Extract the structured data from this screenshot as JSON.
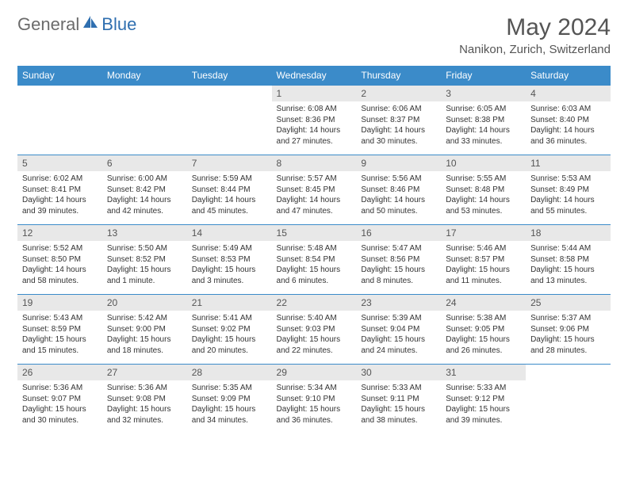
{
  "logo": {
    "part1": "General",
    "part2": "Blue"
  },
  "title": "May 2024",
  "location": "Nanikon, Zurich, Switzerland",
  "colors": {
    "header_bg": "#3b8bc9",
    "header_text": "#ffffff",
    "daynum_bg": "#e8e8e8",
    "border": "#3b8bc9",
    "logo_gray": "#6b6b6b",
    "logo_blue": "#2f6fb0",
    "text": "#333333",
    "title_color": "#555555"
  },
  "fonts": {
    "title_size": 30,
    "location_size": 15,
    "header_size": 12,
    "daynum_size": 12,
    "body_size": 10
  },
  "day_headers": [
    "Sunday",
    "Monday",
    "Tuesday",
    "Wednesday",
    "Thursday",
    "Friday",
    "Saturday"
  ],
  "weeks": [
    [
      {
        "n": "",
        "sr": "",
        "ss": "",
        "dl": ""
      },
      {
        "n": "",
        "sr": "",
        "ss": "",
        "dl": ""
      },
      {
        "n": "",
        "sr": "",
        "ss": "",
        "dl": ""
      },
      {
        "n": "1",
        "sr": "Sunrise: 6:08 AM",
        "ss": "Sunset: 8:36 PM",
        "dl": "Daylight: 14 hours and 27 minutes."
      },
      {
        "n": "2",
        "sr": "Sunrise: 6:06 AM",
        "ss": "Sunset: 8:37 PM",
        "dl": "Daylight: 14 hours and 30 minutes."
      },
      {
        "n": "3",
        "sr": "Sunrise: 6:05 AM",
        "ss": "Sunset: 8:38 PM",
        "dl": "Daylight: 14 hours and 33 minutes."
      },
      {
        "n": "4",
        "sr": "Sunrise: 6:03 AM",
        "ss": "Sunset: 8:40 PM",
        "dl": "Daylight: 14 hours and 36 minutes."
      }
    ],
    [
      {
        "n": "5",
        "sr": "Sunrise: 6:02 AM",
        "ss": "Sunset: 8:41 PM",
        "dl": "Daylight: 14 hours and 39 minutes."
      },
      {
        "n": "6",
        "sr": "Sunrise: 6:00 AM",
        "ss": "Sunset: 8:42 PM",
        "dl": "Daylight: 14 hours and 42 minutes."
      },
      {
        "n": "7",
        "sr": "Sunrise: 5:59 AM",
        "ss": "Sunset: 8:44 PM",
        "dl": "Daylight: 14 hours and 45 minutes."
      },
      {
        "n": "8",
        "sr": "Sunrise: 5:57 AM",
        "ss": "Sunset: 8:45 PM",
        "dl": "Daylight: 14 hours and 47 minutes."
      },
      {
        "n": "9",
        "sr": "Sunrise: 5:56 AM",
        "ss": "Sunset: 8:46 PM",
        "dl": "Daylight: 14 hours and 50 minutes."
      },
      {
        "n": "10",
        "sr": "Sunrise: 5:55 AM",
        "ss": "Sunset: 8:48 PM",
        "dl": "Daylight: 14 hours and 53 minutes."
      },
      {
        "n": "11",
        "sr": "Sunrise: 5:53 AM",
        "ss": "Sunset: 8:49 PM",
        "dl": "Daylight: 14 hours and 55 minutes."
      }
    ],
    [
      {
        "n": "12",
        "sr": "Sunrise: 5:52 AM",
        "ss": "Sunset: 8:50 PM",
        "dl": "Daylight: 14 hours and 58 minutes."
      },
      {
        "n": "13",
        "sr": "Sunrise: 5:50 AM",
        "ss": "Sunset: 8:52 PM",
        "dl": "Daylight: 15 hours and 1 minute."
      },
      {
        "n": "14",
        "sr": "Sunrise: 5:49 AM",
        "ss": "Sunset: 8:53 PM",
        "dl": "Daylight: 15 hours and 3 minutes."
      },
      {
        "n": "15",
        "sr": "Sunrise: 5:48 AM",
        "ss": "Sunset: 8:54 PM",
        "dl": "Daylight: 15 hours and 6 minutes."
      },
      {
        "n": "16",
        "sr": "Sunrise: 5:47 AM",
        "ss": "Sunset: 8:56 PM",
        "dl": "Daylight: 15 hours and 8 minutes."
      },
      {
        "n": "17",
        "sr": "Sunrise: 5:46 AM",
        "ss": "Sunset: 8:57 PM",
        "dl": "Daylight: 15 hours and 11 minutes."
      },
      {
        "n": "18",
        "sr": "Sunrise: 5:44 AM",
        "ss": "Sunset: 8:58 PM",
        "dl": "Daylight: 15 hours and 13 minutes."
      }
    ],
    [
      {
        "n": "19",
        "sr": "Sunrise: 5:43 AM",
        "ss": "Sunset: 8:59 PM",
        "dl": "Daylight: 15 hours and 15 minutes."
      },
      {
        "n": "20",
        "sr": "Sunrise: 5:42 AM",
        "ss": "Sunset: 9:00 PM",
        "dl": "Daylight: 15 hours and 18 minutes."
      },
      {
        "n": "21",
        "sr": "Sunrise: 5:41 AM",
        "ss": "Sunset: 9:02 PM",
        "dl": "Daylight: 15 hours and 20 minutes."
      },
      {
        "n": "22",
        "sr": "Sunrise: 5:40 AM",
        "ss": "Sunset: 9:03 PM",
        "dl": "Daylight: 15 hours and 22 minutes."
      },
      {
        "n": "23",
        "sr": "Sunrise: 5:39 AM",
        "ss": "Sunset: 9:04 PM",
        "dl": "Daylight: 15 hours and 24 minutes."
      },
      {
        "n": "24",
        "sr": "Sunrise: 5:38 AM",
        "ss": "Sunset: 9:05 PM",
        "dl": "Daylight: 15 hours and 26 minutes."
      },
      {
        "n": "25",
        "sr": "Sunrise: 5:37 AM",
        "ss": "Sunset: 9:06 PM",
        "dl": "Daylight: 15 hours and 28 minutes."
      }
    ],
    [
      {
        "n": "26",
        "sr": "Sunrise: 5:36 AM",
        "ss": "Sunset: 9:07 PM",
        "dl": "Daylight: 15 hours and 30 minutes."
      },
      {
        "n": "27",
        "sr": "Sunrise: 5:36 AM",
        "ss": "Sunset: 9:08 PM",
        "dl": "Daylight: 15 hours and 32 minutes."
      },
      {
        "n": "28",
        "sr": "Sunrise: 5:35 AM",
        "ss": "Sunset: 9:09 PM",
        "dl": "Daylight: 15 hours and 34 minutes."
      },
      {
        "n": "29",
        "sr": "Sunrise: 5:34 AM",
        "ss": "Sunset: 9:10 PM",
        "dl": "Daylight: 15 hours and 36 minutes."
      },
      {
        "n": "30",
        "sr": "Sunrise: 5:33 AM",
        "ss": "Sunset: 9:11 PM",
        "dl": "Daylight: 15 hours and 38 minutes."
      },
      {
        "n": "31",
        "sr": "Sunrise: 5:33 AM",
        "ss": "Sunset: 9:12 PM",
        "dl": "Daylight: 15 hours and 39 minutes."
      },
      {
        "n": "",
        "sr": "",
        "ss": "",
        "dl": ""
      }
    ]
  ]
}
